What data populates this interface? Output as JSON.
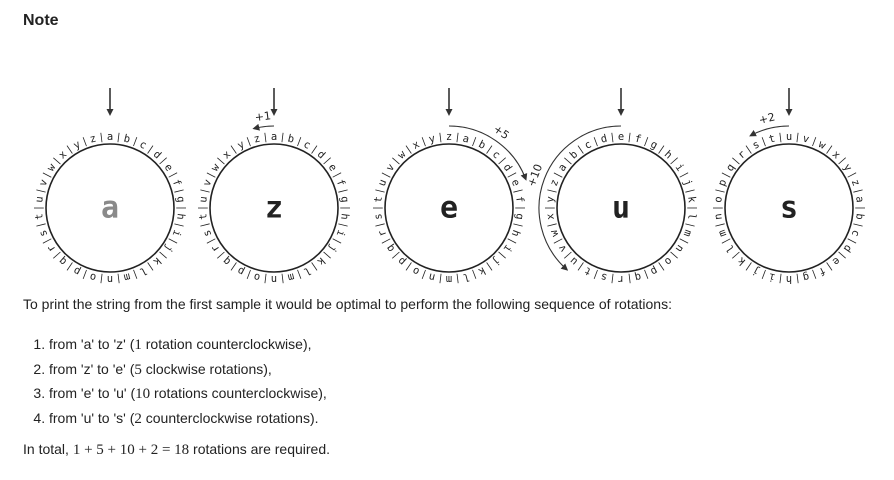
{
  "title": "Note",
  "alphabet": "abcdefghijklmnopqrstuvwxyz",
  "wheels": [
    {
      "top_letter": "a",
      "center": "a",
      "center_color": "#8a8a8a",
      "rotation": null
    },
    {
      "top_letter": "a",
      "center": "z",
      "center_color": "#222222",
      "rotation": {
        "label": "+1",
        "steps": 1,
        "direction": "counterclockwise"
      }
    },
    {
      "top_letter": "z",
      "center": "e",
      "center_color": "#222222",
      "rotation": {
        "label": "+5",
        "steps": 5,
        "direction": "clockwise"
      }
    },
    {
      "top_letter": "e",
      "center": "u",
      "center_color": "#222222",
      "rotation": {
        "label": "+10",
        "steps": 10,
        "direction": "counterclockwise"
      }
    },
    {
      "top_letter": "u",
      "center": "s",
      "center_color": "#222222",
      "rotation": {
        "label": "+2",
        "steps": 2,
        "direction": "counterclockwise"
      }
    }
  ],
  "intro": "To print the string from the first sample it would be optimal to perform the following sequence of rotations:",
  "steps": [
    {
      "text_a": "from 'a' to 'z' (",
      "num": "1",
      "text_b": " rotation counterclockwise),"
    },
    {
      "text_a": "from 'z' to 'e' (",
      "num": "5",
      "text_b": " clockwise rotations),"
    },
    {
      "text_a": "from 'e' to 'u' (",
      "num": "10",
      "text_b": " rotations counterclockwise),"
    },
    {
      "text_a": "from 'u' to 's' (",
      "num": "2",
      "text_b": " counterclockwise rotations)."
    }
  ],
  "total": {
    "prefix": "In total, ",
    "formula": "1 + 5 + 10 + 2 = 18",
    "suffix": " rotations are required."
  }
}
